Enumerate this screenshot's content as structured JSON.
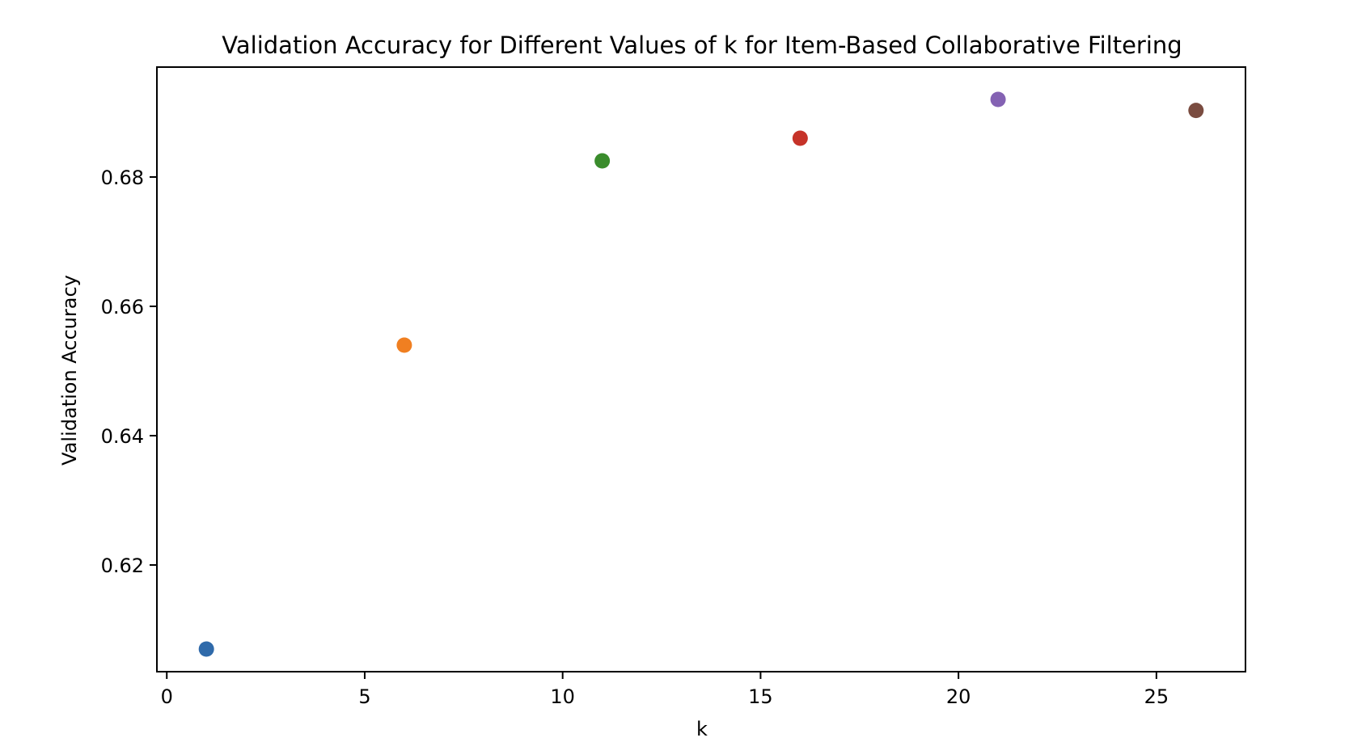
{
  "chart_data": {
    "type": "scatter",
    "title": "Validation Accuracy for Different Values of k for Item-Based Collaborative Filtering",
    "xlabel": "k",
    "ylabel": "Validation Accuracy",
    "xlim": [
      -0.25,
      27.25
    ],
    "ylim": [
      0.6035,
      0.697
    ],
    "x_ticks": [
      0,
      5,
      10,
      15,
      20,
      25
    ],
    "x_tick_labels": [
      "0",
      "5",
      "10",
      "15",
      "20",
      "25"
    ],
    "y_ticks": [
      0.62,
      0.64,
      0.66,
      0.68
    ],
    "y_tick_labels": [
      "0.62",
      "0.64",
      "0.66",
      "0.68"
    ],
    "grid": false,
    "legend": "none",
    "points": [
      {
        "x": 1,
        "y": 0.607,
        "color": "#2f6aaa"
      },
      {
        "x": 6,
        "y": 0.654,
        "color": "#f07f21"
      },
      {
        "x": 11,
        "y": 0.6825,
        "color": "#3a8c2c"
      },
      {
        "x": 16,
        "y": 0.686,
        "color": "#c63329"
      },
      {
        "x": 21,
        "y": 0.692,
        "color": "#8462b3"
      },
      {
        "x": 26,
        "y": 0.6903,
        "color": "#7a4c40"
      }
    ]
  }
}
